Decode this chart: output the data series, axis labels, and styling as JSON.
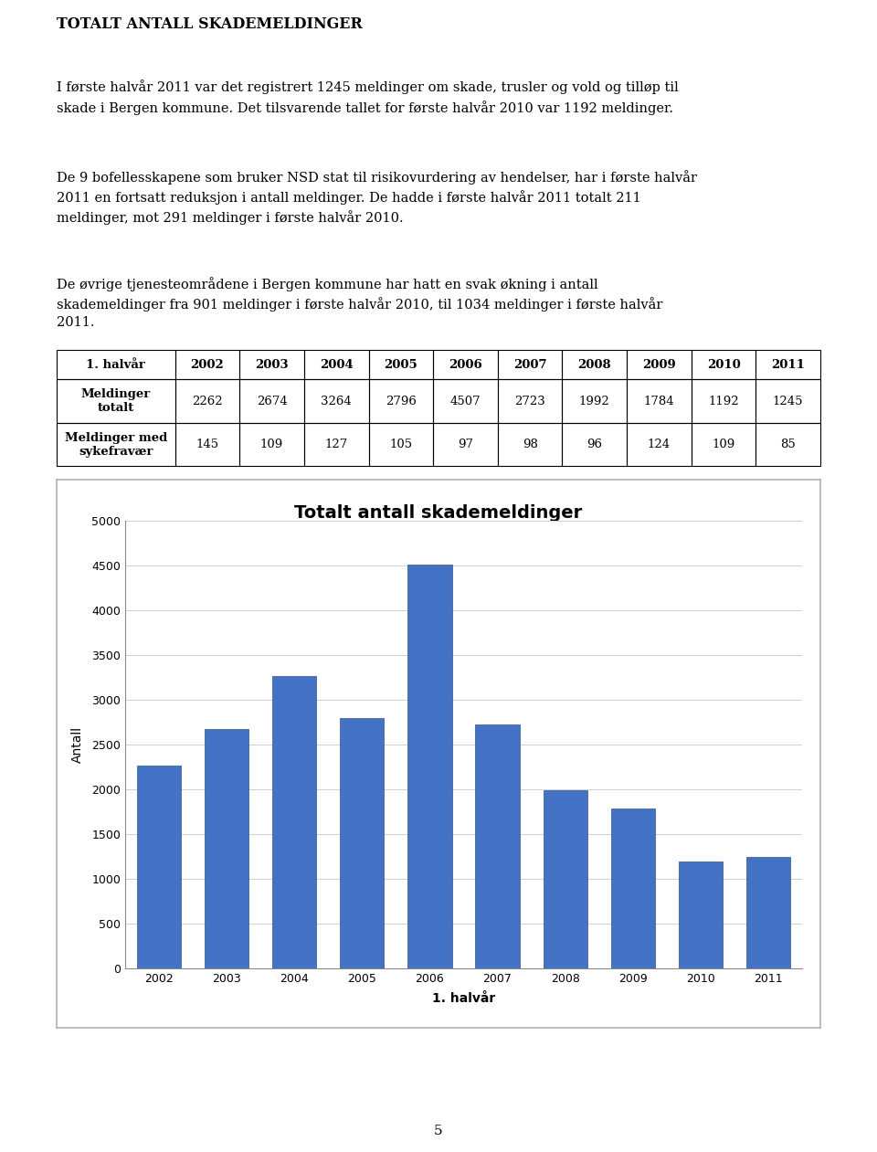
{
  "title_text": "TOTALT ANTALL SKADEMELDINGER",
  "paragraph1": "I første halvår 2011 var det registrert 1245 meldinger om skade, trusler og vold og tilløp til\nskade i Bergen kommune. Det tilsvarende tallet for første halvår 2010 var 1192 meldinger.",
  "paragraph2": "De 9 bofellesskapene som bruker NSD stat til risikovurdering av hendelser, har i første halvår\n2011 en fortsatt reduksjon i antall meldinger. De hadde i første halvår 2011 totalt 211\nmeldinger, mot 291 meldinger i første halvår 2010.",
  "paragraph3": "De øvrige tjenesteområdene i Bergen kommune har hatt en svak økning i antall\nskademeldinger fra 901 meldinger i første halvår 2010, til 1034 meldinger i første halvår\n2011.",
  "table_headers": [
    "1. halvår",
    "2002",
    "2003",
    "2004",
    "2005",
    "2006",
    "2007",
    "2008",
    "2009",
    "2010",
    "2011"
  ],
  "table_row1_label": "Meldinger\ntotalt",
  "table_row1_values": [
    2262,
    2674,
    3264,
    2796,
    4507,
    2723,
    1992,
    1784,
    1192,
    1245
  ],
  "table_row2_label": "Meldinger med\nsykefravær",
  "table_row2_values": [
    145,
    109,
    127,
    105,
    97,
    98,
    96,
    124,
    109,
    85
  ],
  "chart_title": "Totalt antall skademeldinger",
  "chart_years": [
    2002,
    2003,
    2004,
    2005,
    2006,
    2007,
    2008,
    2009,
    2010,
    2011
  ],
  "chart_values": [
    2262,
    2674,
    3264,
    2796,
    4507,
    2723,
    1992,
    1784,
    1192,
    1245
  ],
  "bar_color": "#4472C4",
  "bar_edge_color": "#2F528F",
  "xlabel": "1. halvår",
  "ylabel": "Antall",
  "ylim": [
    0,
    5000
  ],
  "yticks": [
    0,
    500,
    1000,
    1500,
    2000,
    2500,
    3000,
    3500,
    4000,
    4500,
    5000
  ],
  "page_number": "5",
  "background_color": "#ffffff",
  "chart_bg_color": "#ffffff",
  "chart_border_color": "#b0b0b0"
}
